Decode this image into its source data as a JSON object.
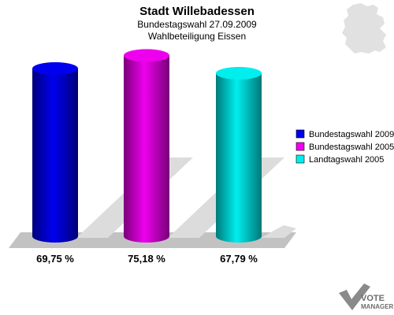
{
  "header": {
    "title": "Stadt Willebadessen",
    "subtitle": "Bundestagswahl 27.09.2009",
    "subtitle2": "Wahlbeteiligung Eissen"
  },
  "chart_data": {
    "type": "bar",
    "title": "Stadt Willebadessen",
    "subtitle": "Bundestagswahl 27.09.2009 — Wahlbeteiligung Eissen",
    "xlabel": "",
    "ylabel": "",
    "ylim": [
      0,
      100
    ],
    "grid": false,
    "legend_position": "right",
    "categories": [
      "Bundestagswahl 2009",
      "Bundestagswahl 2005",
      "Landtagswahl 2005"
    ],
    "values": [
      69.75,
      75.18,
      67.79
    ],
    "value_labels": [
      "69,75 %",
      "75,18 %",
      "67,79 %"
    ],
    "colors": [
      "#0000ee",
      "#ee00ee",
      "#00eeee"
    ]
  },
  "legend": {
    "items": [
      {
        "label": "Bundestagswahl 2009",
        "color": "#0000ee"
      },
      {
        "label": "Bundestagswahl 2005",
        "color": "#ee00ee"
      },
      {
        "label": "Landtagswahl 2005",
        "color": "#00eeee"
      }
    ]
  },
  "logo": {
    "line1": "VOTE",
    "line2": "MANAGER"
  }
}
